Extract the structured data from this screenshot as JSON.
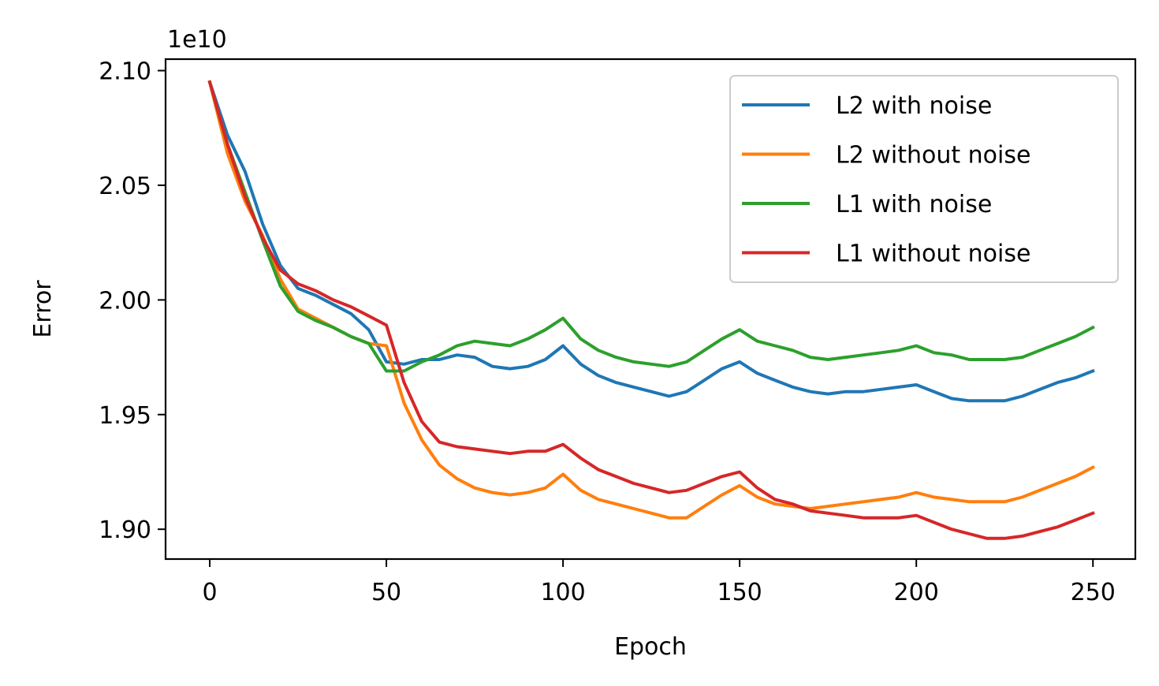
{
  "chart_data": {
    "type": "line",
    "xlabel": "Epoch",
    "ylabel": "Error",
    "y_offset_label": "1e10",
    "xlim": [
      -12.5,
      262
    ],
    "ylim": [
      18870000000,
      21050000000
    ],
    "x_ticks": [
      0,
      50,
      100,
      150,
      200,
      250
    ],
    "x_tick_labels": [
      "0",
      "50",
      "100",
      "150",
      "200",
      "250"
    ],
    "y_ticks": [
      19000000000,
      19500000000,
      20000000000,
      20500000000,
      21000000000
    ],
    "y_tick_labels": [
      "1.90",
      "1.95",
      "2.00",
      "2.05",
      "2.10"
    ],
    "grid": false,
    "legend_position": "top-right",
    "x": [
      0,
      5,
      10,
      15,
      20,
      25,
      30,
      35,
      40,
      45,
      50,
      55,
      60,
      65,
      70,
      75,
      80,
      85,
      90,
      95,
      100,
      105,
      110,
      115,
      120,
      125,
      130,
      135,
      140,
      145,
      150,
      155,
      160,
      165,
      170,
      175,
      180,
      185,
      190,
      195,
      200,
      205,
      210,
      215,
      220,
      225,
      230,
      235,
      240,
      245,
      250
    ],
    "series": [
      {
        "name": "L2 with noise",
        "color": "#1f77b4",
        "values": [
          20950000000,
          20720000000,
          20560000000,
          20330000000,
          20150000000,
          20050000000,
          20020000000,
          19980000000,
          19940000000,
          19870000000,
          19730000000,
          19720000000,
          19740000000,
          19740000000,
          19760000000,
          19750000000,
          19710000000,
          19700000000,
          19710000000,
          19740000000,
          19800000000,
          19720000000,
          19670000000,
          19640000000,
          19620000000,
          19600000000,
          19580000000,
          19600000000,
          19650000000,
          19700000000,
          19730000000,
          19680000000,
          19650000000,
          19620000000,
          19600000000,
          19590000000,
          19600000000,
          19600000000,
          19610000000,
          19620000000,
          19630000000,
          19600000000,
          19570000000,
          19560000000,
          19560000000,
          19560000000,
          19580000000,
          19610000000,
          19640000000,
          19660000000,
          19690000000
        ]
      },
      {
        "name": "L2 without noise",
        "color": "#ff7f0e",
        "values": [
          20950000000,
          20640000000,
          20430000000,
          20280000000,
          20090000000,
          19960000000,
          19920000000,
          19880000000,
          19840000000,
          19810000000,
          19800000000,
          19550000000,
          19390000000,
          19280000000,
          19220000000,
          19180000000,
          19160000000,
          19150000000,
          19160000000,
          19180000000,
          19240000000,
          19170000000,
          19130000000,
          19110000000,
          19090000000,
          19070000000,
          19050000000,
          19050000000,
          19100000000,
          19150000000,
          19190000000,
          19140000000,
          19110000000,
          19100000000,
          19090000000,
          19100000000,
          19110000000,
          19120000000,
          19130000000,
          19140000000,
          19160000000,
          19140000000,
          19130000000,
          19120000000,
          19120000000,
          19120000000,
          19140000000,
          19170000000,
          19200000000,
          19230000000,
          19270000000
        ]
      },
      {
        "name": "L1 with noise",
        "color": "#2ca02c",
        "values": [
          20950000000,
          20680000000,
          20470000000,
          20260000000,
          20060000000,
          19950000000,
          19910000000,
          19880000000,
          19840000000,
          19810000000,
          19690000000,
          19690000000,
          19730000000,
          19760000000,
          19800000000,
          19820000000,
          19810000000,
          19800000000,
          19830000000,
          19870000000,
          19920000000,
          19830000000,
          19780000000,
          19750000000,
          19730000000,
          19720000000,
          19710000000,
          19730000000,
          19780000000,
          19830000000,
          19870000000,
          19820000000,
          19800000000,
          19780000000,
          19750000000,
          19740000000,
          19750000000,
          19760000000,
          19770000000,
          19780000000,
          19800000000,
          19770000000,
          19760000000,
          19740000000,
          19740000000,
          19740000000,
          19750000000,
          19780000000,
          19810000000,
          19840000000,
          19880000000
        ]
      },
      {
        "name": "L1 without noise",
        "color": "#d62728",
        "values": [
          20950000000,
          20680000000,
          20450000000,
          20270000000,
          20130000000,
          20070000000,
          20040000000,
          20000000000,
          19970000000,
          19930000000,
          19890000000,
          19640000000,
          19470000000,
          19380000000,
          19360000000,
          19350000000,
          19340000000,
          19330000000,
          19340000000,
          19340000000,
          19370000000,
          19310000000,
          19260000000,
          19230000000,
          19200000000,
          19180000000,
          19160000000,
          19170000000,
          19200000000,
          19230000000,
          19250000000,
          19180000000,
          19130000000,
          19110000000,
          19080000000,
          19070000000,
          19060000000,
          19050000000,
          19050000000,
          19050000000,
          19060000000,
          19030000000,
          19000000000,
          18980000000,
          18960000000,
          18960000000,
          18970000000,
          18990000000,
          19010000000,
          19040000000,
          19070000000
        ]
      }
    ]
  }
}
